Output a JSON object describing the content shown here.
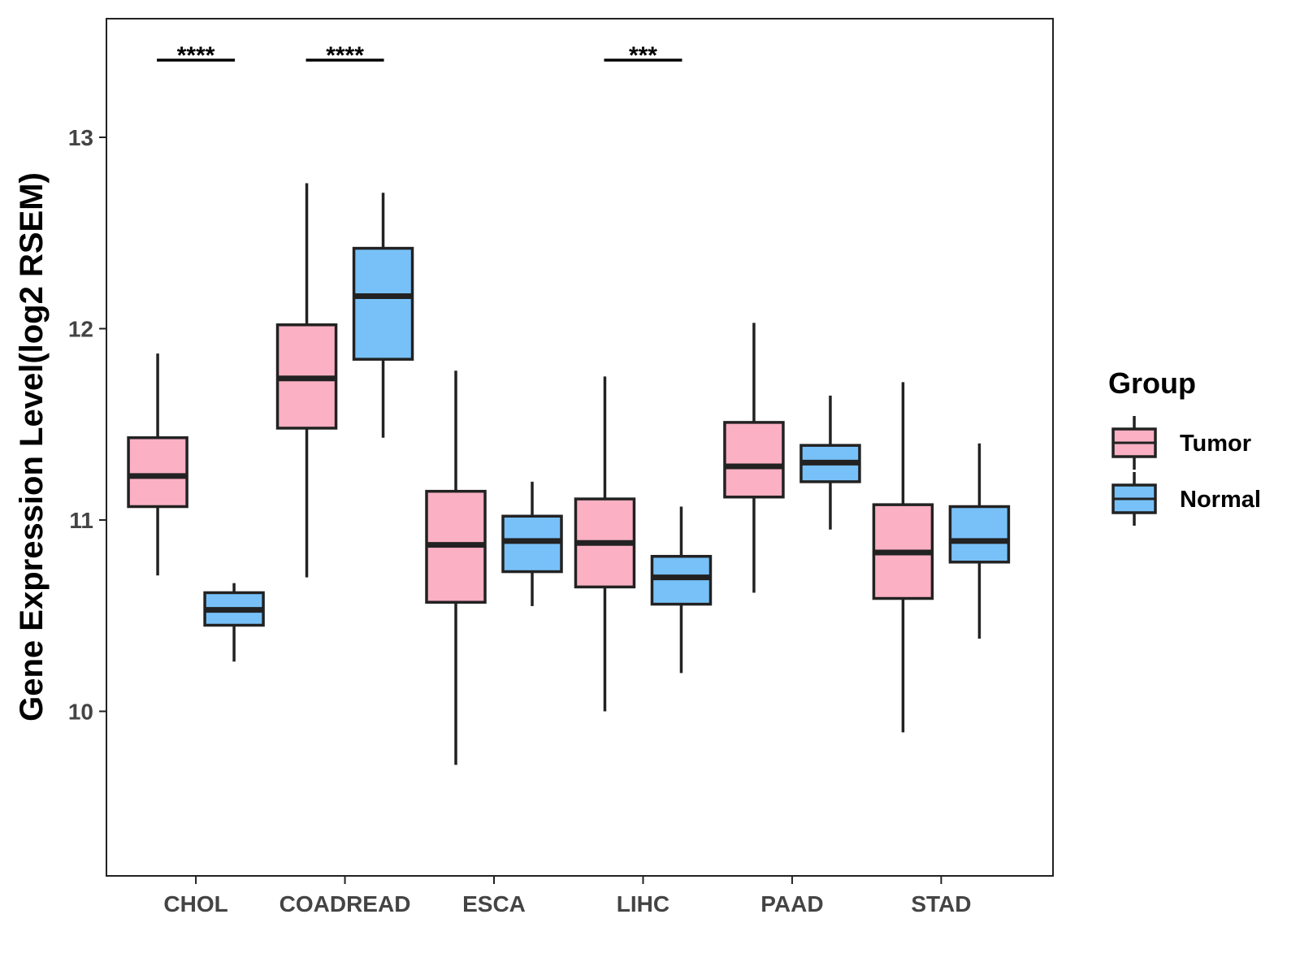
{
  "chart_data": {
    "type": "boxplot",
    "ylabel": "Gene Expression Level(log2 RSEM)",
    "xlabel": "",
    "ylim": [
      9.14,
      13.62
    ],
    "yticks": [
      10,
      11,
      12,
      13
    ],
    "categories": [
      "CHOL",
      "COADREAD",
      "ESCA",
      "LIHC",
      "PAAD",
      "STAD"
    ],
    "legend": {
      "title": "Group",
      "position": "right",
      "entries": [
        {
          "name": "Tumor",
          "color": "#FBB0C4"
        },
        {
          "name": "Normal",
          "color": "#78C1F8"
        }
      ]
    },
    "series": [
      {
        "name": "Tumor",
        "color": "#FBB0C4",
        "boxes": [
          {
            "min": 10.71,
            "q1": 11.07,
            "median": 11.23,
            "q3": 11.43,
            "max": 11.87
          },
          {
            "min": 10.7,
            "q1": 11.48,
            "median": 11.74,
            "q3": 12.02,
            "max": 12.76
          },
          {
            "min": 9.72,
            "q1": 10.57,
            "median": 10.87,
            "q3": 11.15,
            "max": 11.78
          },
          {
            "min": 10.0,
            "q1": 10.65,
            "median": 10.88,
            "q3": 11.11,
            "max": 11.75
          },
          {
            "min": 10.62,
            "q1": 11.12,
            "median": 11.28,
            "q3": 11.51,
            "max": 12.03
          },
          {
            "min": 9.89,
            "q1": 10.59,
            "median": 10.83,
            "q3": 11.08,
            "max": 11.72
          }
        ]
      },
      {
        "name": "Normal",
        "color": "#78C1F8",
        "boxes": [
          {
            "min": 10.26,
            "q1": 10.45,
            "median": 10.53,
            "q3": 10.62,
            "max": 10.67
          },
          {
            "min": 11.43,
            "q1": 11.84,
            "median": 12.17,
            "q3": 12.42,
            "max": 12.71
          },
          {
            "min": 10.55,
            "q1": 10.73,
            "median": 10.89,
            "q3": 11.02,
            "max": 11.2
          },
          {
            "min": 10.2,
            "q1": 10.56,
            "median": 10.7,
            "q3": 10.81,
            "max": 11.07
          },
          {
            "min": 10.95,
            "q1": 11.2,
            "median": 11.3,
            "q3": 11.39,
            "max": 11.65
          },
          {
            "min": 10.38,
            "q1": 10.78,
            "median": 10.89,
            "q3": 11.07,
            "max": 11.4
          }
        ]
      }
    ],
    "significance": [
      {
        "category": "CHOL",
        "label": "****"
      },
      {
        "category": "COADREAD",
        "label": "****"
      },
      {
        "category": "LIHC",
        "label": "***"
      }
    ]
  }
}
